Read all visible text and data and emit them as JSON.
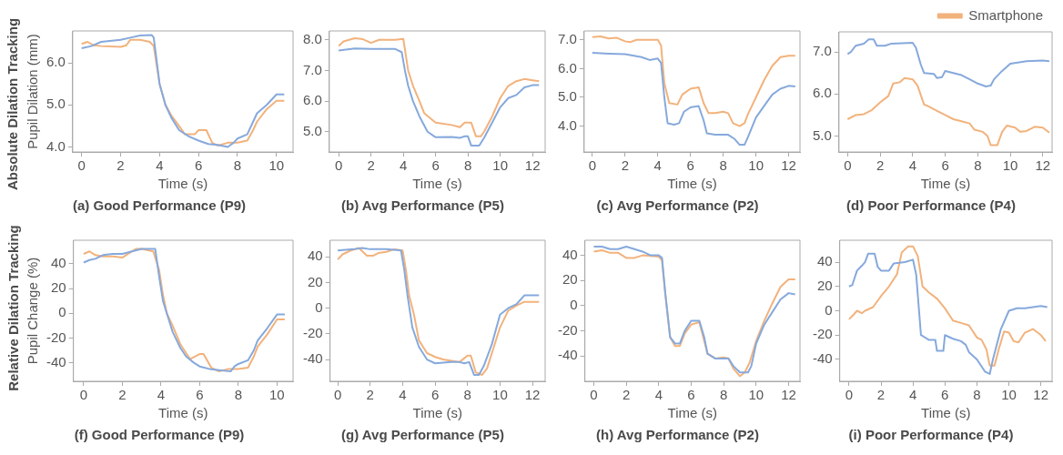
{
  "chart_data": [
    {
      "type": "line",
      "title": "(a) Good Performance (P9)",
      "xlabel": "Time (s)",
      "ylabel": "Pupil Dilation (mm)",
      "annotations": [
        "Absolute Dilation Tracking"
      ],
      "xlim": [
        -0.46,
        10.85
      ],
      "xticks": [
        0,
        2,
        4,
        6,
        8,
        10
      ],
      "ylim": [
        3.88,
        6.76
      ],
      "yticks": [
        {
          "value": 4,
          "label": "4.0"
        },
        {
          "value": 5,
          "label": "5.0"
        },
        {
          "value": 6,
          "label": "6.0"
        }
      ],
      "grid": false,
      "legend": false,
      "series": [
        {
          "color": "#86a9dc",
          "x": [
            0,
            0.5,
            1,
            2,
            2.5,
            3,
            3.6,
            3.7,
            4,
            4.3,
            4.6,
            5,
            5.5,
            6,
            6.5,
            7,
            7.5,
            7.8,
            8,
            8.5,
            8.8,
            9,
            9.5,
            10,
            10.4
          ],
          "values": [
            6.35,
            6.4,
            6.5,
            6.55,
            6.6,
            6.65,
            6.66,
            6.6,
            5.5,
            5,
            4.7,
            4.4,
            4.25,
            4.15,
            4.07,
            4.05,
            4,
            4.1,
            4.2,
            4.3,
            4.6,
            4.8,
            5,
            5.25,
            5.25
          ]
        },
        {
          "color": "#f2b27c",
          "x": [
            0,
            0.3,
            0.6,
            1,
            2,
            2.3,
            2.5,
            3,
            3.5,
            3.7,
            4,
            4.3,
            4.6,
            5,
            5.3,
            5.8,
            6,
            6.4,
            6.7,
            7,
            7.5,
            8,
            8.5,
            8.8,
            9,
            9.5,
            10,
            10.4
          ],
          "values": [
            6.45,
            6.5,
            6.42,
            6.4,
            6.38,
            6.42,
            6.55,
            6.55,
            6.5,
            6.4,
            5.5,
            5,
            4.75,
            4.5,
            4.3,
            4.3,
            4.4,
            4.4,
            4.1,
            4.03,
            4.1,
            4.1,
            4.15,
            4.4,
            4.6,
            4.9,
            5.1,
            5.1
          ]
        }
      ]
    },
    {
      "type": "line",
      "title": "(b) Avg Performance (P5)",
      "xlabel": "Time (s)",
      "xlim": [
        -0.58,
        12.78
      ],
      "xticks": [
        0,
        2,
        4,
        6,
        8,
        10,
        12
      ],
      "ylim": [
        4.34,
        8.29
      ],
      "yticks": [
        {
          "value": 5,
          "label": "5.0"
        },
        {
          "value": 6,
          "label": "6.0"
        },
        {
          "value": 7,
          "label": "7.0"
        },
        {
          "value": 8,
          "label": "8.0"
        }
      ],
      "grid": false,
      "legend": false,
      "series": [
        {
          "color": "#86a9dc",
          "x": [
            0,
            1,
            2,
            3.5,
            3.9,
            4.1,
            4.3,
            4.6,
            5,
            5.5,
            6,
            7,
            7.5,
            7.8,
            8,
            8.2,
            8.7,
            9,
            9.5,
            10,
            10.5,
            11,
            11.5,
            12,
            12.4
          ],
          "values": [
            7.65,
            7.72,
            7.7,
            7.7,
            7.6,
            7,
            6.5,
            6,
            5.5,
            5,
            4.82,
            4.83,
            4.8,
            4.85,
            4.85,
            4.55,
            4.55,
            4.8,
            5.3,
            5.8,
            6.1,
            6.2,
            6.45,
            6.52,
            6.52
          ]
        },
        {
          "color": "#f2b27c",
          "x": [
            0,
            0.3,
            1,
            1.5,
            2,
            2.5,
            3.5,
            4,
            4.3,
            4.6,
            5,
            5.3,
            6,
            7,
            7.5,
            7.8,
            8.2,
            8.5,
            8.8,
            9,
            9.5,
            10,
            10.5,
            11,
            11.5,
            12,
            12.4
          ],
          "values": [
            7.8,
            7.95,
            8.05,
            8.02,
            7.9,
            8,
            8,
            8.03,
            7,
            6.5,
            6,
            5.6,
            5.3,
            5.22,
            5.15,
            5.3,
            5.3,
            4.85,
            4.85,
            5,
            5.5,
            6.1,
            6.5,
            6.65,
            6.72,
            6.68,
            6.65
          ]
        }
      ]
    },
    {
      "type": "line",
      "title": "(c) Avg Performance (P2)",
      "xlabel": "Time (s)",
      "xlim": [
        -0.5,
        12.69
      ],
      "xticks": [
        0,
        2,
        4,
        6,
        8,
        10,
        12
      ],
      "ylim": [
        3.1,
        7.31
      ],
      "yticks": [
        {
          "value": 4,
          "label": "4.0"
        },
        {
          "value": 5,
          "label": "5.0"
        },
        {
          "value": 6,
          "label": "6.0"
        },
        {
          "value": 7,
          "label": "7.0"
        }
      ],
      "grid": false,
      "legend": false,
      "series": [
        {
          "color": "#86a9dc",
          "x": [
            0,
            1,
            2,
            3,
            3.5,
            4,
            4.2,
            4.4,
            4.6,
            5,
            5.3,
            5.6,
            6,
            6.5,
            6.8,
            7,
            7.5,
            8.3,
            8.7,
            9,
            9.3,
            9.5,
            10,
            10.5,
            11,
            11.5,
            12,
            12.4
          ],
          "values": [
            6.55,
            6.52,
            6.5,
            6.4,
            6.3,
            6.35,
            6.2,
            5,
            4.1,
            4.05,
            4.1,
            4.5,
            4.65,
            4.7,
            4.2,
            3.75,
            3.7,
            3.7,
            3.55,
            3.35,
            3.35,
            3.6,
            4.3,
            4.7,
            5.1,
            5.3,
            5.4,
            5.38
          ]
        },
        {
          "color": "#f2b27c",
          "x": [
            0,
            0.5,
            1,
            1.5,
            2,
            2.3,
            2.7,
            4,
            4.2,
            4.4,
            4.7,
            5.2,
            5.5,
            6,
            6.5,
            6.8,
            7.1,
            7.5,
            8,
            8.3,
            8.6,
            9,
            9.3,
            9.5,
            10,
            10.5,
            11,
            11.5,
            12,
            12.4
          ],
          "values": [
            7.1,
            7.12,
            7.05,
            7.07,
            6.95,
            6.92,
            7,
            7,
            6.8,
            5.5,
            4.8,
            4.75,
            5.1,
            5.3,
            5.35,
            4.8,
            4.45,
            4.45,
            4.5,
            4.45,
            4.1,
            4,
            4.1,
            4.4,
            5,
            5.6,
            6.1,
            6.4,
            6.45,
            6.45
          ]
        }
      ]
    },
    {
      "type": "line",
      "title": "(d) Poor Performance (P4)",
      "xlabel": "Time (s)",
      "xlim": [
        -0.53,
        12.57
      ],
      "xticks": [
        0,
        2,
        4,
        6,
        8,
        10,
        12
      ],
      "ylim": [
        4.62,
        7.48
      ],
      "yticks": [
        {
          "value": 5,
          "label": "5.0"
        },
        {
          "value": 6,
          "label": "6.0"
        },
        {
          "value": 7,
          "label": "7.0"
        }
      ],
      "grid": false,
      "legend": "top right",
      "series": [
        {
          "color": "#86a9dc",
          "x": [
            0,
            0.2,
            0.5,
            1,
            1.3,
            1.6,
            1.8,
            2.3,
            2.7,
            4,
            4.2,
            4.5,
            4.7,
            5.3,
            5.5,
            5.8,
            6,
            6.5,
            7,
            7.5,
            8,
            8.5,
            8.8,
            9,
            9.5,
            10,
            11,
            12,
            12.4
          ],
          "values": [
            6.95,
            7,
            7.15,
            7.2,
            7.3,
            7.3,
            7.15,
            7.15,
            7.2,
            7.22,
            7.1,
            6.7,
            6.5,
            6.48,
            6.38,
            6.4,
            6.55,
            6.5,
            6.45,
            6.35,
            6.25,
            6.18,
            6.2,
            6.35,
            6.55,
            6.72,
            6.78,
            6.8,
            6.78
          ]
        },
        {
          "name": "Smartphone",
          "color": "#f2b27c",
          "x": [
            0,
            0.5,
            1,
            1.5,
            2,
            2.5,
            2.8,
            3.2,
            3.5,
            4,
            4.3,
            4.7,
            5,
            5.5,
            6,
            6.5,
            7,
            7.5,
            7.8,
            8.3,
            8.6,
            8.8,
            9.2,
            9.5,
            9.8,
            10.3,
            10.6,
            11,
            11.5,
            12,
            12.4
          ],
          "values": [
            5.4,
            5.5,
            5.52,
            5.62,
            5.8,
            5.95,
            6.25,
            6.28,
            6.38,
            6.35,
            6.2,
            5.75,
            5.7,
            5.6,
            5.5,
            5.4,
            5.35,
            5.3,
            5.15,
            5.1,
            5,
            4.78,
            4.78,
            5.1,
            5.25,
            5.2,
            5.1,
            5.12,
            5.22,
            5.2,
            5.08
          ]
        }
      ]
    },
    {
      "type": "line",
      "title": "(f) Good Performance (P9)",
      "xlabel": "Time (s)",
      "ylabel": "Pupil Change (%)",
      "annotations": [
        "Relative Dilation Tracking"
      ],
      "xlim": [
        -0.53,
        10.83
      ],
      "xticks": [
        0,
        2,
        4,
        6,
        8,
        10
      ],
      "ylim": [
        -55,
        59
      ],
      "yticks": [
        -40,
        -20,
        0,
        20,
        40
      ],
      "grid": false,
      "legend": false,
      "series": [
        {
          "color": "#86a9dc",
          "x": [
            0,
            0.3,
            0.6,
            1,
            1.5,
            2,
            2.5,
            3,
            3.7,
            3.9,
            4.1,
            4.3,
            4.6,
            5,
            5.3,
            5.7,
            6,
            6.5,
            7,
            7.6,
            7.8,
            8,
            8.5,
            8.8,
            9,
            9.5,
            10,
            10.4
          ],
          "values": [
            41,
            43,
            44,
            47,
            48,
            48,
            50,
            52,
            52,
            30,
            10,
            0,
            -15,
            -28,
            -35,
            -40,
            -43,
            -45,
            -46,
            -47,
            -43,
            -41,
            -38,
            -30,
            -22,
            -12,
            -1,
            -1
          ]
        },
        {
          "color": "#f2b27c",
          "x": [
            0,
            0.3,
            0.6,
            1,
            1.5,
            2,
            2.3,
            2.7,
            3,
            3.6,
            3.9,
            4.1,
            4.3,
            4.6,
            5,
            5.5,
            6,
            6.2,
            6.6,
            7,
            7.5,
            8,
            8.5,
            8.8,
            9,
            9.5,
            10,
            10.4
          ],
          "values": [
            48,
            50,
            47,
            46,
            46,
            45,
            48,
            52,
            52,
            50,
            35,
            15,
            0,
            -10,
            -25,
            -37,
            -33,
            -33,
            -44,
            -47,
            -45,
            -45,
            -44,
            -35,
            -27,
            -17,
            -5,
            -5
          ]
        }
      ]
    },
    {
      "type": "line",
      "title": "(g) Avg Performance (P5)",
      "xlabel": "Time (s)",
      "xlim": [
        -0.47,
        12.78
      ],
      "xticks": [
        0,
        2,
        4,
        6,
        8,
        10,
        12
      ],
      "ylim": [
        -57,
        53
      ],
      "yticks": [
        -40,
        -20,
        0,
        20,
        40
      ],
      "grid": false,
      "legend": false,
      "series": [
        {
          "color": "#86a9dc",
          "x": [
            0,
            1,
            1.5,
            2,
            3,
            3.9,
            4.1,
            4.3,
            4.6,
            5,
            5.5,
            6,
            7,
            7.5,
            7.8,
            8.1,
            8.4,
            8.7,
            9,
            9.5,
            10,
            10.5,
            11,
            11.5,
            12,
            12.4
          ],
          "values": [
            45,
            46,
            47,
            46,
            46,
            45,
            30,
            10,
            -15,
            -30,
            -40,
            -43,
            -42,
            -42,
            -43,
            -42,
            -52,
            -52,
            -45,
            -28,
            -5,
            0,
            3,
            10,
            10,
            10
          ]
        },
        {
          "color": "#f2b27c",
          "x": [
            0,
            0.3,
            0.8,
            1.3,
            1.8,
            2.2,
            2.5,
            3,
            3.5,
            4,
            4.2,
            4.4,
            4.7,
            5,
            5.5,
            6,
            6.5,
            7,
            7.5,
            8,
            8.2,
            8.5,
            8.9,
            9.2,
            9.5,
            10,
            10.5,
            11,
            11.5,
            12,
            12.4
          ],
          "values": [
            38,
            42,
            45,
            47,
            41,
            41,
            43,
            44,
            46,
            45,
            30,
            10,
            -5,
            -25,
            -35,
            -38,
            -40,
            -41,
            -42,
            -37,
            -37,
            -50,
            -52,
            -47,
            -35,
            -15,
            -2,
            2,
            5,
            5,
            5
          ]
        }
      ]
    },
    {
      "type": "line",
      "title": "(h) Avg Performance (P2)",
      "xlabel": "Time (s)",
      "xlim": [
        -0.55,
        12.7
      ],
      "xticks": [
        0,
        2,
        4,
        6,
        8,
        10,
        12
      ],
      "ylim": [
        -60,
        52
      ],
      "yticks": [
        -40,
        -20,
        0,
        20,
        40
      ],
      "grid": false,
      "legend": false,
      "series": [
        {
          "color": "#86a9dc",
          "x": [
            0,
            0.5,
            1,
            1.5,
            2,
            2.5,
            3,
            3.5,
            4,
            4.2,
            4.4,
            4.7,
            5,
            5.3,
            5.6,
            6,
            6.5,
            6.8,
            7,
            7.5,
            8,
            8.3,
            8.6,
            9,
            9.5,
            9.7,
            10,
            10.5,
            11,
            11.5,
            12,
            12.4
          ],
          "values": [
            47,
            47,
            45,
            45,
            47,
            45,
            43,
            40,
            40,
            38,
            10,
            -25,
            -30,
            -30,
            -20,
            -12,
            -12,
            -25,
            -38,
            -42,
            -42,
            -42,
            -48,
            -53,
            -53,
            -48,
            -30,
            -15,
            -5,
            5,
            10,
            9
          ]
        },
        {
          "color": "#f2b27c",
          "x": [
            0,
            0.5,
            1,
            1.5,
            2,
            2.5,
            3,
            4,
            4.2,
            4.4,
            4.7,
            5,
            5.3,
            5.6,
            6,
            6.5,
            6.8,
            7,
            7.5,
            8,
            8.3,
            8.6,
            9,
            9.3,
            9.6,
            10,
            10.5,
            11,
            11.5,
            12,
            12.4
          ],
          "values": [
            43,
            44,
            42,
            42,
            38,
            38,
            40,
            39,
            36,
            10,
            -25,
            -32,
            -32,
            -22,
            -15,
            -13,
            -28,
            -38,
            -42,
            -41,
            -42,
            -50,
            -56,
            -53,
            -45,
            -28,
            -12,
            2,
            15,
            21,
            21
          ]
        }
      ]
    },
    {
      "type": "line",
      "title": "(i) Poor Performance (P4)",
      "xlabel": "Time (s)",
      "xlim": [
        -0.58,
        12.7
      ],
      "xticks": [
        0,
        2,
        4,
        6,
        8,
        10,
        12
      ],
      "ylim": [
        -58,
        58
      ],
      "yticks": [
        -40,
        -20,
        0,
        20,
        40
      ],
      "grid": false,
      "legend": false,
      "series": [
        {
          "color": "#86a9dc",
          "x": [
            0,
            0.2,
            0.5,
            0.8,
            1,
            1.2,
            1.6,
            1.8,
            2,
            2.5,
            2.8,
            3.5,
            4,
            4.2,
            4.5,
            5,
            5.4,
            5.5,
            5.9,
            6,
            6.5,
            7,
            7.3,
            7.5,
            8,
            8.5,
            8.8,
            9,
            9.5,
            10,
            10.5,
            11,
            11.5,
            12,
            12.4
          ],
          "values": [
            20,
            21,
            33,
            37,
            40,
            47,
            47,
            36,
            33,
            33,
            39,
            40,
            42,
            30,
            -20,
            -24,
            -24,
            -33,
            -33,
            -20,
            -23,
            -25,
            -28,
            -34,
            -40,
            -50,
            -52,
            -40,
            -15,
            0,
            2,
            2,
            3,
            4,
            3
          ]
        },
        {
          "color": "#f2b27c",
          "x": [
            0,
            0.3,
            0.5,
            0.8,
            1,
            1.5,
            2,
            2.5,
            3,
            3.3,
            3.7,
            4,
            4.3,
            4.6,
            5,
            5.5,
            6,
            6.5,
            7,
            7.5,
            8,
            8.3,
            8.6,
            8.8,
            9.1,
            9.4,
            9.7,
            10,
            10.3,
            10.6,
            11,
            11.5,
            12,
            12.3
          ],
          "values": [
            -7,
            -3,
            0,
            -2,
            0,
            3,
            12,
            20,
            30,
            48,
            53,
            53,
            45,
            20,
            15,
            10,
            2,
            -8,
            -10,
            -12,
            -22,
            -24,
            -32,
            -45,
            -45,
            -30,
            -17,
            -18,
            -25,
            -26,
            -18,
            -15,
            -20,
            -25
          ]
        }
      ]
    }
  ]
}
